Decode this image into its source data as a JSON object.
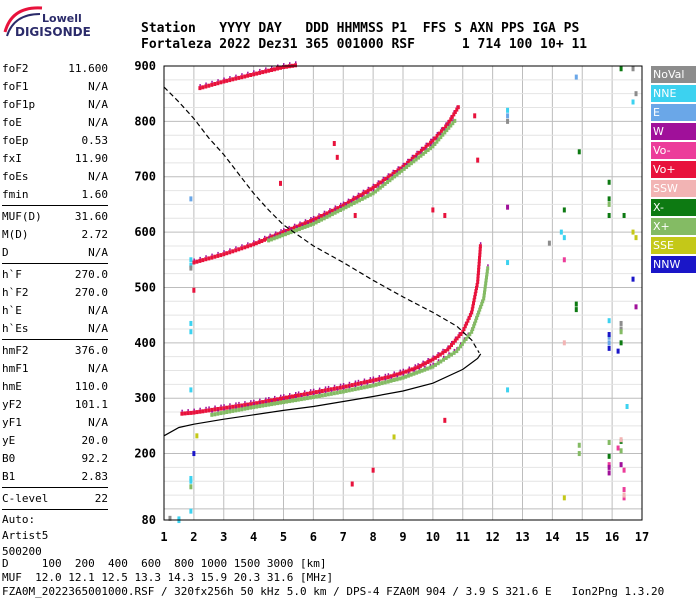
{
  "logo": {
    "line1": "Lowell",
    "line2": "DIGISONDE"
  },
  "header": {
    "line1": "Station   YYYY DAY   DDD HHMMSS P1  FFS S AXN PPS IGA PS",
    "line2": "Fortaleza 2022 Dez31 365 001000 RSF      1 714 100 10+ 11"
  },
  "params": [
    {
      "label": "foF2",
      "value": "11.600"
    },
    {
      "label": "foF1",
      "value": "N/A"
    },
    {
      "label": "foF1p",
      "value": "N/A"
    },
    {
      "label": "foE",
      "value": "N/A"
    },
    {
      "label": "foEp",
      "value": "0.53"
    },
    {
      "label": "fxI",
      "value": "11.90"
    },
    {
      "label": "foEs",
      "value": "N/A"
    },
    {
      "label": "fmin",
      "value": "1.60"
    },
    {
      "sep": true
    },
    {
      "label": "MUF(D)",
      "value": "31.60"
    },
    {
      "label": "M(D)",
      "value": "2.72"
    },
    {
      "label": "D",
      "value": "N/A"
    },
    {
      "sep": true
    },
    {
      "label": "h`F",
      "value": "270.0"
    },
    {
      "label": "h`F2",
      "value": "270.0"
    },
    {
      "label": "h`E",
      "value": "N/A"
    },
    {
      "label": "h`Es",
      "value": "N/A"
    },
    {
      "sep": true
    },
    {
      "label": "hmF2",
      "value": "376.0"
    },
    {
      "label": "hmF1",
      "value": "N/A"
    },
    {
      "label": "hmE",
      "value": "110.0"
    },
    {
      "label": "yF2",
      "value": "101.1"
    },
    {
      "label": "yF1",
      "value": "N/A"
    },
    {
      "label": "yE",
      "value": "20.0"
    },
    {
      "label": "B0",
      "value": "92.2"
    },
    {
      "label": "B1",
      "value": "2.83"
    },
    {
      "sep": true
    },
    {
      "label": "C-level",
      "value": "22"
    },
    {
      "sep": true
    },
    {
      "text": "Auto:"
    },
    {
      "text": "Artist5"
    },
    {
      "text": "500200"
    }
  ],
  "legend": [
    {
      "label": "NoVal",
      "color": "#8c8c8c"
    },
    {
      "label": "NNE",
      "color": "#3cd2f0"
    },
    {
      "label": "E",
      "color": "#6aa7e8"
    },
    {
      "label": "W",
      "color": "#a0109a"
    },
    {
      "label": "Vo-",
      "color": "#ec3c9a"
    },
    {
      "label": "Vo+",
      "color": "#e8123c"
    },
    {
      "label": "SSW",
      "color": "#f2b4b4"
    },
    {
      "label": "X-",
      "color": "#0d7a12"
    },
    {
      "label": "X+",
      "color": "#84bb64"
    },
    {
      "label": "SSE",
      "color": "#c4c818"
    },
    {
      "label": "NNW",
      "color": "#1a16c8"
    }
  ],
  "footer": {
    "line1": "D     100  200  400  600  800 1000 1500 3000 [km]",
    "line2": "MUF  12.0 12.1 12.5 13.3 14.3 15.9 20.3 31.6 [MHz]",
    "line3": "FZA0M_2022365001000.RSF / 320fx256h 50 kHz 5.0 km / DPS-4 FZA0M 904 / 3.9 S 321.6 E   Ion2Png 1.3.20"
  },
  "chart_data": {
    "type": "scatter",
    "x_ticks": [
      "1",
      "2",
      "3",
      "4",
      "5",
      "6",
      "7",
      "8",
      "9",
      "10",
      "11",
      "12",
      "13",
      "14",
      "15",
      "16",
      "17"
    ],
    "y_ticks": [
      "80",
      "200",
      "300",
      "400",
      "500",
      "600",
      "700",
      "800",
      "900"
    ],
    "xlim": [
      1,
      17
    ],
    "ylim": [
      80,
      900
    ],
    "grid": true,
    "series": [
      {
        "name": "Vo+",
        "color": "#e8123c",
        "points": [
          [
            1.6,
            272
          ],
          [
            2.0,
            274
          ],
          [
            2.5,
            278
          ],
          [
            3.0,
            282
          ],
          [
            3.5,
            286
          ],
          [
            4.0,
            290
          ],
          [
            4.5,
            295
          ],
          [
            5.0,
            300
          ],
          [
            5.5,
            305
          ],
          [
            6.0,
            310
          ],
          [
            6.5,
            315
          ],
          [
            7.0,
            320
          ],
          [
            7.5,
            326
          ],
          [
            8.0,
            332
          ],
          [
            8.5,
            338
          ],
          [
            9.0,
            346
          ],
          [
            9.5,
            356
          ],
          [
            10.0,
            370
          ],
          [
            10.5,
            388
          ],
          [
            11.0,
            420
          ],
          [
            11.3,
            455
          ],
          [
            11.5,
            510
          ],
          [
            11.6,
            580
          ]
        ]
      },
      {
        "name": "X+",
        "color": "#84bb64",
        "points": [
          [
            2.6,
            270
          ],
          [
            3.2,
            276
          ],
          [
            4.0,
            284
          ],
          [
            5.0,
            293
          ],
          [
            6.0,
            302
          ],
          [
            7.0,
            312
          ],
          [
            8.0,
            323
          ],
          [
            9.0,
            337
          ],
          [
            10.0,
            357
          ],
          [
            10.8,
            385
          ],
          [
            11.3,
            420
          ],
          [
            11.7,
            480
          ],
          [
            11.85,
            540
          ]
        ]
      },
      {
        "name": "Vo+ (2nd hop)",
        "color": "#e8123c",
        "points": [
          [
            2.0,
            545
          ],
          [
            3.0,
            560
          ],
          [
            4.0,
            578
          ],
          [
            5.0,
            600
          ],
          [
            6.0,
            622
          ],
          [
            7.0,
            648
          ],
          [
            8.0,
            680
          ],
          [
            9.0,
            718
          ],
          [
            10.0,
            765
          ],
          [
            10.5,
            795
          ],
          [
            10.9,
            830
          ]
        ]
      },
      {
        "name": "X+ (2nd hop)",
        "color": "#84bb64",
        "points": [
          [
            4.5,
            585
          ],
          [
            6.0,
            615
          ],
          [
            8.0,
            670
          ],
          [
            10.0,
            755
          ],
          [
            10.8,
            805
          ]
        ]
      },
      {
        "name": "Vo+ (3rd hop)",
        "color": "#e8123c",
        "points": [
          [
            2.2,
            860
          ],
          [
            3.0,
            872
          ],
          [
            4.0,
            885
          ],
          [
            5.0,
            898
          ],
          [
            5.5,
            902
          ]
        ]
      },
      {
        "name": "true height profile",
        "color": "#000000",
        "line": "solid",
        "points": [
          [
            1.0,
            232
          ],
          [
            1.5,
            247
          ],
          [
            2.0,
            253
          ],
          [
            3.0,
            262
          ],
          [
            4.0,
            270
          ],
          [
            5.0,
            278
          ],
          [
            6.0,
            285
          ],
          [
            7.0,
            294
          ],
          [
            8.0,
            303
          ],
          [
            9.0,
            313
          ],
          [
            10.0,
            327
          ],
          [
            11.0,
            352
          ],
          [
            11.5,
            372
          ],
          [
            11.6,
            380
          ]
        ]
      },
      {
        "name": "model profile",
        "color": "#000000",
        "line": "dashed",
        "points": [
          [
            1.0,
            862
          ],
          [
            1.5,
            835
          ],
          [
            2.0,
            805
          ],
          [
            2.5,
            770
          ],
          [
            3.0,
            740
          ],
          [
            3.5,
            705
          ],
          [
            4.0,
            670
          ],
          [
            4.5,
            640
          ],
          [
            5.0,
            613
          ],
          [
            6.0,
            575
          ],
          [
            7.0,
            545
          ],
          [
            8.0,
            513
          ],
          [
            9.0,
            483
          ],
          [
            10.0,
            455
          ],
          [
            10.8,
            430
          ],
          [
            11.3,
            405
          ],
          [
            11.55,
            382
          ]
        ]
      }
    ],
    "scatter_marks": [
      {
        "color": "#3cd2f0",
        "points": [
          [
            1.5,
            82
          ],
          [
            1.5,
            79
          ],
          [
            1.9,
            96
          ],
          [
            1.9,
            150
          ],
          [
            1.9,
            155
          ],
          [
            1.9,
            315
          ],
          [
            1.9,
            420
          ],
          [
            1.9,
            435
          ],
          [
            1.9,
            550
          ],
          [
            1.9,
            540
          ],
          [
            12.5,
            315
          ],
          [
            12.5,
            545
          ],
          [
            12.5,
            820
          ],
          [
            14.3,
            600
          ],
          [
            14.4,
            590
          ],
          [
            15.9,
            440
          ],
          [
            16.5,
            285
          ],
          [
            16.7,
            835
          ]
        ]
      },
      {
        "color": "#6aa7e8",
        "points": [
          [
            1.9,
            660
          ],
          [
            12.5,
            810
          ],
          [
            14.8,
            880
          ],
          [
            15.9,
            400
          ],
          [
            15.9,
            410
          ]
        ]
      },
      {
        "color": "#8c8c8c",
        "points": [
          [
            1.2,
            83
          ],
          [
            1.9,
            535
          ],
          [
            12.5,
            800
          ],
          [
            13.9,
            580
          ],
          [
            16.3,
            425
          ],
          [
            16.3,
            435
          ],
          [
            16.7,
            895
          ],
          [
            16.8,
            850
          ]
        ]
      },
      {
        "color": "#0d7a12",
        "points": [
          [
            14.4,
            640
          ],
          [
            14.8,
            460
          ],
          [
            14.8,
            470
          ],
          [
            14.9,
            745
          ],
          [
            15.9,
            195
          ],
          [
            15.9,
            630
          ],
          [
            15.9,
            660
          ],
          [
            15.9,
            690
          ],
          [
            16.3,
            222
          ],
          [
            16.3,
            400
          ],
          [
            16.3,
            895
          ],
          [
            16.4,
            630
          ]
        ]
      },
      {
        "color": "#84bb64",
        "points": [
          [
            1.9,
            140
          ],
          [
            14.9,
            200
          ],
          [
            14.9,
            215
          ],
          [
            15.9,
            220
          ],
          [
            15.9,
            650
          ],
          [
            16.3,
            205
          ],
          [
            16.3,
            420
          ]
        ]
      },
      {
        "color": "#c4c818",
        "points": [
          [
            2.1,
            232
          ],
          [
            8.7,
            230
          ],
          [
            14.4,
            120
          ],
          [
            16.7,
            600
          ],
          [
            16.8,
            590
          ]
        ]
      },
      {
        "color": "#ec3c9a",
        "points": [
          [
            14.4,
            550
          ],
          [
            15.9,
            180
          ],
          [
            16.4,
            135
          ],
          [
            16.4,
            120
          ],
          [
            16.2,
            210
          ],
          [
            16.4,
            170
          ]
        ]
      },
      {
        "color": "#a0109a",
        "points": [
          [
            12.5,
            645
          ],
          [
            15.9,
            165
          ],
          [
            15.9,
            175
          ],
          [
            16.3,
            180
          ],
          [
            16.8,
            465
          ]
        ]
      },
      {
        "color": "#f2b4b4",
        "points": [
          [
            14.4,
            400
          ],
          [
            16.4,
            125
          ],
          [
            16.3,
            225
          ]
        ]
      },
      {
        "color": "#1a16c8",
        "points": [
          [
            15.9,
            415
          ],
          [
            15.9,
            390
          ],
          [
            16.2,
            385
          ],
          [
            16.7,
            515
          ],
          [
            2.0,
            200
          ]
        ]
      },
      {
        "color": "#e8123c",
        "points": [
          [
            2.0,
            495
          ],
          [
            4.9,
            688
          ],
          [
            6.7,
            760
          ],
          [
            7.3,
            145
          ],
          [
            8.0,
            170
          ],
          [
            10.0,
            640
          ],
          [
            10.4,
            630
          ],
          [
            11.4,
            810
          ],
          [
            11.5,
            730
          ],
          [
            10.4,
            260
          ],
          [
            6.8,
            735
          ],
          [
            7.4,
            630
          ]
        ]
      }
    ]
  }
}
